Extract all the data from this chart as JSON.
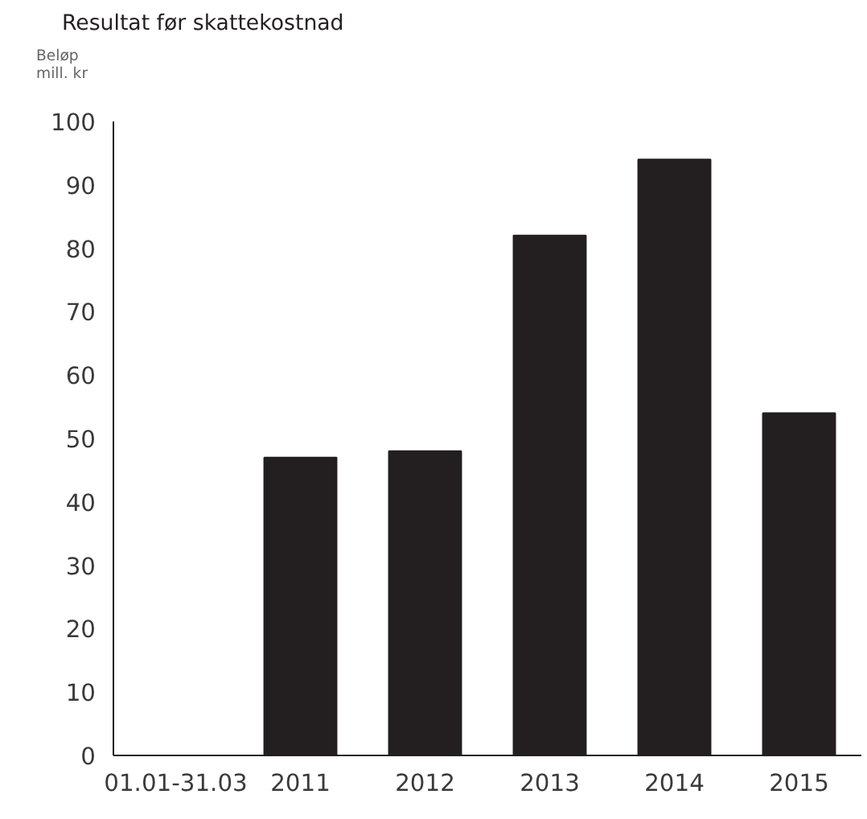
{
  "chart_data": {
    "type": "bar",
    "title": "Resultat før skattekostnad",
    "ylabel": "Beløp mill. kr",
    "categories": [
      "01.01-31.03",
      "2011",
      "2012",
      "2013",
      "2014",
      "2015"
    ],
    "values": [
      null,
      47,
      48,
      82,
      94,
      54
    ],
    "color": "#231f20",
    "ylim": [
      0,
      100
    ],
    "yticks": [
      0,
      10,
      20,
      30,
      40,
      50,
      60,
      70,
      80,
      90,
      100
    ],
    "grid": false
  }
}
